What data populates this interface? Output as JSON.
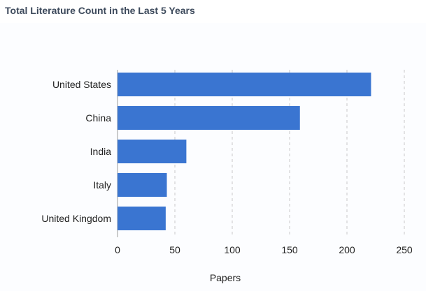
{
  "panel": {
    "title": "Total Literature Count in the Last 5 Years"
  },
  "colors": {
    "bar": "#3a75d1",
    "grid": "#c8c8c8",
    "axis": "#9a9a9a"
  },
  "chart_data": {
    "type": "bar",
    "orientation": "horizontal",
    "categories": [
      "United States",
      "China",
      "India",
      "Italy",
      "United Kingdom"
    ],
    "values": [
      221,
      159,
      60,
      43,
      42
    ],
    "xlabel": "Papers",
    "ylabel": "",
    "xlim": [
      0,
      250
    ],
    "xticks": [
      0,
      50,
      100,
      150,
      200,
      250
    ],
    "grid": "vertical-dashed"
  }
}
